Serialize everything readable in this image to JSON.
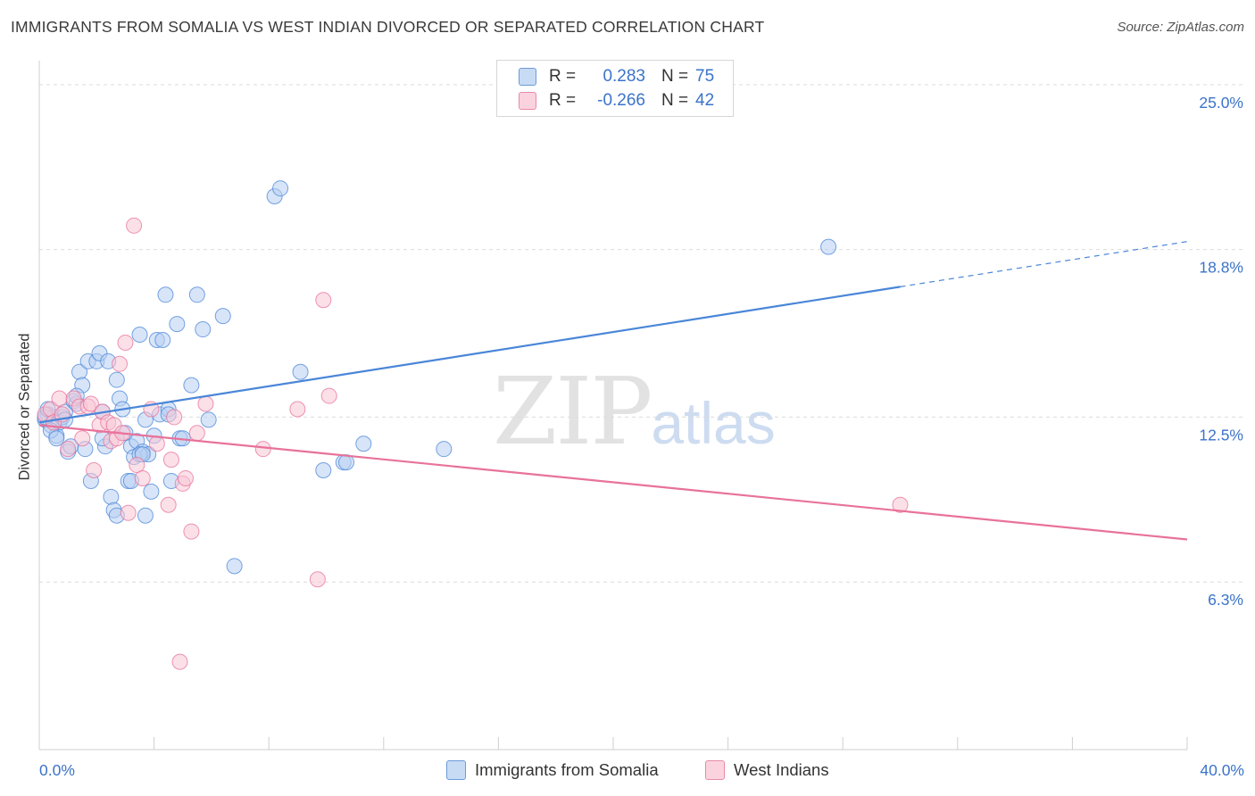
{
  "title": "IMMIGRANTS FROM SOMALIA VS WEST INDIAN DIVORCED OR SEPARATED CORRELATION CHART",
  "source": "Source: ZipAtlas.com",
  "watermark": {
    "zip": "ZIP",
    "atlas": "atlas"
  },
  "legend": {
    "r_label": "R =",
    "n_label": "N =",
    "rows": [
      {
        "r": "0.283",
        "n": "75",
        "color": "#a9c6ef"
      },
      {
        "r": "-0.266",
        "n": "42",
        "color": "#f5b8ca"
      }
    ]
  },
  "chart_data": {
    "type": "scatter",
    "title": "IMMIGRANTS FROM SOMALIA VS WEST INDIAN DIVORCED OR SEPARATED CORRELATION CHART",
    "xlabel": "",
    "ylabel": "Divorced or Separated",
    "xlim": [
      0,
      40
    ],
    "ylim": [
      0,
      25.9
    ],
    "x_tick_labels": [
      "0.0%",
      "40.0%"
    ],
    "y_ticks": [
      6.3,
      12.5,
      18.8,
      25.0
    ],
    "y_tick_labels": [
      "6.3%",
      "12.5%",
      "18.8%",
      "25.0%"
    ],
    "grid": true,
    "legend_position": "top-center",
    "series": [
      {
        "name": "Immigrants from Somalia",
        "color": "#4a86d8",
        "fill": "#b8d0f2",
        "trend": {
          "x0": 0.0,
          "y0": 12.3,
          "x1": 30.0,
          "y1": 17.4,
          "dashed_to_x": 40.0,
          "dashed_to_y": 19.1
        },
        "points": [
          [
            0.2,
            12.4
          ],
          [
            0.3,
            12.6
          ],
          [
            0.4,
            12.2
          ],
          [
            0.5,
            12.5
          ],
          [
            0.6,
            11.8
          ],
          [
            0.7,
            12.3
          ],
          [
            0.8,
            12.5
          ],
          [
            0.9,
            12.7
          ],
          [
            1.0,
            11.2
          ],
          [
            1.1,
            11.4
          ],
          [
            1.2,
            13.1
          ],
          [
            1.3,
            13.0
          ],
          [
            1.4,
            14.2
          ],
          [
            1.5,
            13.7
          ],
          [
            1.6,
            11.3
          ],
          [
            1.7,
            14.6
          ],
          [
            1.8,
            10.1
          ],
          [
            2.0,
            14.6
          ],
          [
            2.1,
            14.9
          ],
          [
            2.2,
            12.7
          ],
          [
            2.3,
            11.4
          ],
          [
            2.4,
            14.6
          ],
          [
            2.5,
            9.5
          ],
          [
            2.6,
            9.0
          ],
          [
            2.7,
            13.9
          ],
          [
            2.8,
            13.2
          ],
          [
            2.9,
            12.8
          ],
          [
            3.0,
            11.9
          ],
          [
            3.1,
            10.1
          ],
          [
            3.2,
            11.4
          ],
          [
            3.3,
            11.0
          ],
          [
            3.4,
            11.6
          ],
          [
            3.5,
            15.6
          ],
          [
            3.6,
            11.2
          ],
          [
            3.7,
            12.4
          ],
          [
            3.8,
            11.1
          ],
          [
            3.9,
            9.7
          ],
          [
            4.0,
            11.8
          ],
          [
            4.1,
            15.4
          ],
          [
            4.2,
            12.6
          ],
          [
            4.3,
            15.4
          ],
          [
            4.4,
            17.1
          ],
          [
            4.5,
            12.8
          ],
          [
            4.6,
            10.1
          ],
          [
            4.8,
            16.0
          ],
          [
            4.9,
            11.7
          ],
          [
            5.0,
            11.7
          ],
          [
            5.3,
            13.7
          ],
          [
            5.5,
            17.1
          ],
          [
            5.7,
            15.8
          ],
          [
            5.9,
            12.4
          ],
          [
            6.4,
            16.3
          ],
          [
            6.8,
            6.9
          ],
          [
            8.2,
            20.8
          ],
          [
            8.4,
            21.1
          ],
          [
            9.1,
            14.2
          ],
          [
            9.9,
            10.5
          ],
          [
            10.6,
            10.8
          ],
          [
            10.7,
            10.8
          ],
          [
            11.3,
            11.5
          ],
          [
            14.1,
            11.3
          ],
          [
            27.5,
            18.9
          ],
          [
            0.2,
            12.5
          ],
          [
            0.3,
            12.8
          ],
          [
            0.4,
            12.0
          ],
          [
            0.6,
            11.7
          ],
          [
            0.9,
            12.4
          ],
          [
            1.3,
            13.3
          ],
          [
            2.2,
            11.7
          ],
          [
            2.7,
            8.8
          ],
          [
            3.2,
            10.1
          ],
          [
            3.5,
            11.1
          ],
          [
            3.6,
            11.1
          ],
          [
            3.7,
            8.8
          ],
          [
            4.5,
            12.6
          ]
        ]
      },
      {
        "name": "West Indians",
        "color": "#e8729a",
        "fill": "#f8c6d6",
        "trend": {
          "x0": 0.0,
          "y0": 12.2,
          "x1": 40.0,
          "y1": 7.9
        },
        "points": [
          [
            0.2,
            12.6
          ],
          [
            0.4,
            12.8
          ],
          [
            0.5,
            12.3
          ],
          [
            0.7,
            13.2
          ],
          [
            0.8,
            12.6
          ],
          [
            1.0,
            11.3
          ],
          [
            1.2,
            13.2
          ],
          [
            1.4,
            12.9
          ],
          [
            1.5,
            11.7
          ],
          [
            1.7,
            12.9
          ],
          [
            1.8,
            13.0
          ],
          [
            1.9,
            10.5
          ],
          [
            2.1,
            12.2
          ],
          [
            2.2,
            12.7
          ],
          [
            2.4,
            12.3
          ],
          [
            2.5,
            11.6
          ],
          [
            2.6,
            12.2
          ],
          [
            2.7,
            11.7
          ],
          [
            2.8,
            14.5
          ],
          [
            2.9,
            11.9
          ],
          [
            3.0,
            15.3
          ],
          [
            3.1,
            8.9
          ],
          [
            3.3,
            19.7
          ],
          [
            3.4,
            10.7
          ],
          [
            3.6,
            10.2
          ],
          [
            3.9,
            12.8
          ],
          [
            4.1,
            11.5
          ],
          [
            4.5,
            9.2
          ],
          [
            4.6,
            10.9
          ],
          [
            4.7,
            12.5
          ],
          [
            4.9,
            3.3
          ],
          [
            5.0,
            10.0
          ],
          [
            5.1,
            10.2
          ],
          [
            5.3,
            8.2
          ],
          [
            5.5,
            11.9
          ],
          [
            5.8,
            13.0
          ],
          [
            7.8,
            11.3
          ],
          [
            9.0,
            12.8
          ],
          [
            9.7,
            6.4
          ],
          [
            9.9,
            16.9
          ],
          [
            10.1,
            13.3
          ],
          [
            30.0,
            9.2
          ]
        ]
      }
    ]
  },
  "bottom_legend": [
    {
      "label": "Immigrants from Somalia",
      "color": "#a9c6ef",
      "border": "#6c9ad8"
    },
    {
      "label": "West Indians",
      "color": "#f5b8ca",
      "border": "#e88aa6"
    }
  ]
}
